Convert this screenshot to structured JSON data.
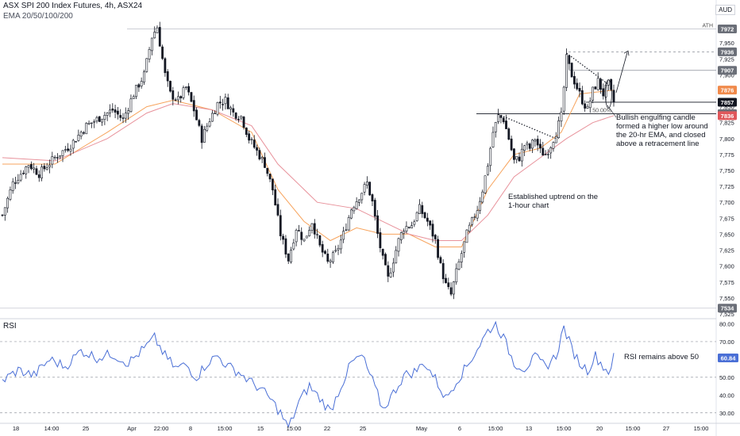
{
  "header": {
    "title": "ASX SPI 200 Index Futures, 4h, ASX24",
    "indicator": "EMA 20/50/100/200",
    "currency": "AUD"
  },
  "rsi_label": "RSI",
  "annotations": {
    "engulfing": "Bullish engulfing candle\nformed a higher low around\nthe 20-hr EMA, and closed\nabove a retracement line",
    "uptrend": "Established uptrend on the\n1-hour chart",
    "rsi": "RSI remains above 50",
    "fib": "50.00%",
    "ath": "ATH"
  },
  "colors": {
    "up": "#131722",
    "down": "#131722",
    "ema20": "#f7a35c",
    "ema50": "#e8929b",
    "rsi": "#4a6fd6",
    "badge_grey": "#6b6f78",
    "badge_orange": "#f08a4b",
    "badge_red": "#e0575b",
    "badge_dark": "#131722"
  },
  "chart_data": [
    {
      "type": "candlestick",
      "title": "ASX SPI 200 Index Futures, 4h, ASX24",
      "x_ticks": [
        "18",
        "14:00",
        "25",
        "Apr",
        "22:00",
        "8",
        "15:00",
        "15",
        "15:00",
        "22",
        "25",
        "May",
        "6",
        "15:00",
        "13",
        "15:00",
        "20",
        "15:00",
        "27",
        "15:00"
      ],
      "y_ticks": [
        7525,
        7550,
        7575,
        7600,
        7625,
        7650,
        7675,
        7700,
        7725,
        7750,
        7775,
        7800,
        7825,
        7850,
        7875,
        7900,
        7925,
        7950
      ],
      "ylim": [
        7520,
        7985
      ],
      "price_path": [
        [
          0,
          7680
        ],
        [
          4,
          7730
        ],
        [
          10,
          7760
        ],
        [
          14,
          7745
        ],
        [
          20,
          7770
        ],
        [
          26,
          7790
        ],
        [
          32,
          7820
        ],
        [
          38,
          7835
        ],
        [
          42,
          7845
        ],
        [
          46,
          7830
        ],
        [
          50,
          7870
        ],
        [
          54,
          7900
        ],
        [
          57,
          7960
        ],
        [
          59,
          7975
        ],
        [
          62,
          7900
        ],
        [
          64,
          7870
        ],
        [
          67,
          7860
        ],
        [
          70,
          7880
        ],
        [
          73,
          7845
        ],
        [
          76,
          7800
        ],
        [
          79,
          7830
        ],
        [
          82,
          7855
        ],
        [
          85,
          7860
        ],
        [
          88,
          7840
        ],
        [
          91,
          7835
        ],
        [
          94,
          7800
        ],
        [
          97,
          7780
        ],
        [
          100,
          7760
        ],
        [
          103,
          7720
        ],
        [
          106,
          7650
        ],
        [
          109,
          7610
        ],
        [
          112,
          7660
        ],
        [
          115,
          7640
        ],
        [
          118,
          7670
        ],
        [
          121,
          7630
        ],
        [
          124,
          7605
        ],
        [
          127,
          7620
        ],
        [
          130,
          7650
        ],
        [
          133,
          7690
        ],
        [
          136,
          7710
        ],
        [
          139,
          7730
        ],
        [
          141,
          7700
        ],
        [
          143,
          7650
        ],
        [
          145,
          7610
        ],
        [
          147,
          7580
        ],
        [
          149,
          7610
        ],
        [
          151,
          7640
        ],
        [
          153,
          7660
        ],
        [
          156,
          7665
        ],
        [
          159,
          7690
        ],
        [
          162,
          7670
        ],
        [
          165,
          7640
        ],
        [
          167,
          7600
        ],
        [
          169,
          7570
        ],
        [
          171,
          7555
        ],
        [
          173,
          7590
        ],
        [
          175,
          7620
        ],
        [
          177,
          7650
        ],
        [
          179,
          7670
        ],
        [
          181,
          7690
        ],
        [
          183,
          7720
        ],
        [
          185,
          7760
        ],
        [
          187,
          7810
        ],
        [
          189,
          7835
        ],
        [
          191,
          7830
        ],
        [
          193,
          7800
        ],
        [
          195,
          7765
        ],
        [
          197,
          7770
        ],
        [
          199,
          7790
        ],
        [
          201,
          7785
        ],
        [
          203,
          7800
        ],
        [
          205,
          7780
        ],
        [
          207,
          7775
        ],
        [
          209,
          7790
        ],
        [
          211,
          7810
        ],
        [
          213,
          7835
        ],
        [
          215,
          7925
        ],
        [
          217,
          7900
        ],
        [
          219,
          7880
        ],
        [
          221,
          7860
        ],
        [
          223,
          7845
        ],
        [
          225,
          7875
        ],
        [
          227,
          7890
        ],
        [
          229,
          7870
        ],
        [
          231,
          7885
        ],
        [
          233,
          7857
        ]
      ],
      "series": [
        {
          "name": "EMA 20",
          "values": [
            [
              0,
              7760
            ],
            [
              20,
              7760
            ],
            [
              40,
              7810
            ],
            [
              55,
              7850
            ],
            [
              65,
              7860
            ],
            [
              80,
              7845
            ],
            [
              95,
              7810
            ],
            [
              105,
              7720
            ],
            [
              115,
              7670
            ],
            [
              125,
              7640
            ],
            [
              135,
              7660
            ],
            [
              145,
              7650
            ],
            [
              155,
              7650
            ],
            [
              165,
              7630
            ],
            [
              175,
              7630
            ],
            [
              185,
              7720
            ],
            [
              195,
              7775
            ],
            [
              205,
              7785
            ],
            [
              213,
              7810
            ],
            [
              220,
              7870
            ],
            [
              233,
              7876
            ]
          ]
        },
        {
          "name": "EMA 50",
          "values": [
            [
              0,
              7770
            ],
            [
              20,
              7765
            ],
            [
              40,
              7800
            ],
            [
              55,
              7840
            ],
            [
              65,
              7855
            ],
            [
              80,
              7845
            ],
            [
              95,
              7820
            ],
            [
              105,
              7760
            ],
            [
              120,
              7700
            ],
            [
              135,
              7690
            ],
            [
              145,
              7670
            ],
            [
              155,
              7650
            ],
            [
              165,
              7640
            ],
            [
              175,
              7640
            ],
            [
              185,
              7680
            ],
            [
              195,
              7740
            ],
            [
              205,
              7770
            ],
            [
              215,
              7800
            ],
            [
              225,
              7825
            ],
            [
              233,
              7836
            ]
          ]
        }
      ],
      "levels": [
        {
          "label": "ATH",
          "value": 7972,
          "badge": "7972",
          "style": "solid-light"
        },
        {
          "value": 7936,
          "badge": "7936",
          "style": "dashed"
        },
        {
          "value": 7907,
          "badge": "7907",
          "style": "solid"
        },
        {
          "value": 7876,
          "badge": "7876",
          "style": "ema20"
        },
        {
          "value": 7857,
          "badge": "7857",
          "style": "current"
        },
        {
          "label": "50.00%",
          "value": 7839,
          "badge": "7839",
          "style": "fib"
        },
        {
          "value": 7836,
          "badge": "7836",
          "style": "ema50"
        },
        {
          "value": 7534,
          "badge": "7534",
          "style": "solid-light"
        }
      ]
    },
    {
      "type": "line",
      "title": "RSI",
      "y_ticks": [
        30,
        40,
        50,
        60,
        70,
        80
      ],
      "ylim": [
        25,
        82
      ],
      "reference_lines": [
        30,
        50,
        70
      ],
      "last_value": 60.84,
      "values": [
        [
          0,
          48
        ],
        [
          6,
          54
        ],
        [
          12,
          51
        ],
        [
          18,
          60
        ],
        [
          24,
          56
        ],
        [
          30,
          65
        ],
        [
          36,
          61
        ],
        [
          42,
          63
        ],
        [
          48,
          58
        ],
        [
          54,
          66
        ],
        [
          58,
          72
        ],
        [
          62,
          62
        ],
        [
          66,
          55
        ],
        [
          70,
          57
        ],
        [
          74,
          50
        ],
        [
          78,
          58
        ],
        [
          82,
          62
        ],
        [
          86,
          56
        ],
        [
          90,
          53
        ],
        [
          94,
          48
        ],
        [
          98,
          44
        ],
        [
          102,
          38
        ],
        [
          106,
          30
        ],
        [
          109,
          21
        ],
        [
          113,
          36
        ],
        [
          117,
          45
        ],
        [
          121,
          38
        ],
        [
          125,
          31
        ],
        [
          129,
          45
        ],
        [
          133,
          58
        ],
        [
          137,
          62
        ],
        [
          141,
          48
        ],
        [
          145,
          32
        ],
        [
          149,
          41
        ],
        [
          153,
          51
        ],
        [
          157,
          53
        ],
        [
          161,
          58
        ],
        [
          165,
          49
        ],
        [
          169,
          38
        ],
        [
          173,
          48
        ],
        [
          177,
          56
        ],
        [
          181,
          66
        ],
        [
          185,
          76
        ],
        [
          188,
          80
        ],
        [
          191,
          72
        ],
        [
          195,
          58
        ],
        [
          199,
          55
        ],
        [
          203,
          61
        ],
        [
          207,
          56
        ],
        [
          211,
          62
        ],
        [
          214,
          78
        ],
        [
          217,
          66
        ],
        [
          220,
          58
        ],
        [
          223,
          54
        ],
        [
          226,
          62
        ],
        [
          229,
          56
        ],
        [
          231,
          53
        ],
        [
          233,
          61
        ]
      ]
    }
  ]
}
